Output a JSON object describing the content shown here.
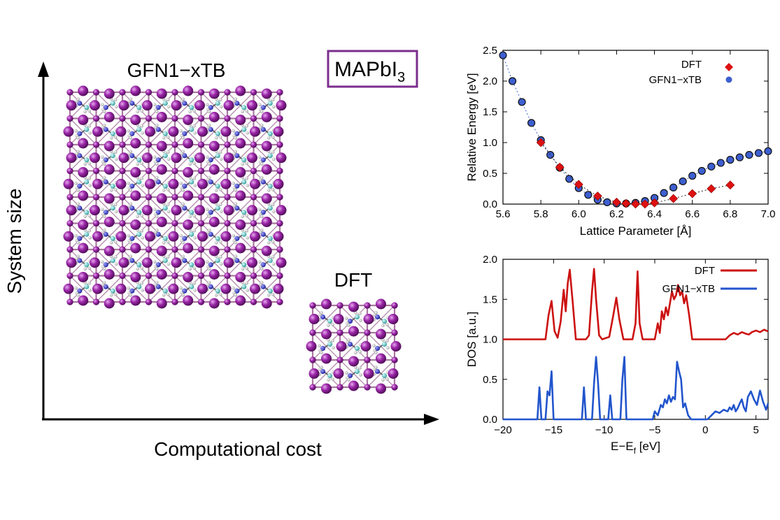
{
  "diagram": {
    "y_axis_label": "System size",
    "x_axis_label": "Computational cost",
    "large_cell_label": "GFN1−xTB",
    "small_cell_label": "DFT",
    "material_label": "MAPbI",
    "material_subscript": "3",
    "colors": {
      "iodine": "#8a1a94",
      "carbon": "#55c8c8",
      "nitrogen": "#2a2ad0",
      "hydrogen": "#f2f2f2",
      "frame": "#7b2d8e"
    }
  },
  "chart_data": [
    {
      "type": "scatter",
      "xlabel": "Lattice Parameter [Å]",
      "ylabel": "Relative Energy [eV]",
      "xlim": [
        5.6,
        7.0
      ],
      "ylim": [
        0.0,
        2.5
      ],
      "xticks": [
        "5.6",
        "5.8",
        "6.0",
        "6.2",
        "6.4",
        "6.6",
        "6.8",
        "7.0"
      ],
      "yticks": [
        "0.0",
        "0.5",
        "1.0",
        "1.5",
        "2.0",
        "2.5"
      ],
      "legend_position": "top-right",
      "series": [
        {
          "name": "DFT",
          "marker": "diamond",
          "color": "#dd1111",
          "x": [
            5.8,
            5.9,
            6.0,
            6.1,
            6.2,
            6.25,
            6.3,
            6.35,
            6.4,
            6.5,
            6.6,
            6.7,
            6.8
          ],
          "y": [
            1.0,
            0.6,
            0.32,
            0.13,
            0.03,
            0.01,
            0.0,
            0.0,
            0.02,
            0.09,
            0.17,
            0.25,
            0.31
          ]
        },
        {
          "name": "GFN1−xTB",
          "marker": "circle",
          "color": "#3d5fd0",
          "x": [
            5.6,
            5.65,
            5.7,
            5.75,
            5.8,
            5.85,
            5.9,
            5.95,
            6.0,
            6.05,
            6.1,
            6.15,
            6.2,
            6.25,
            6.3,
            6.35,
            6.4,
            6.45,
            6.5,
            6.55,
            6.6,
            6.65,
            6.7,
            6.75,
            6.8,
            6.85,
            6.9,
            6.95,
            7.0
          ],
          "y": [
            2.42,
            2.0,
            1.66,
            1.32,
            1.04,
            0.8,
            0.59,
            0.41,
            0.26,
            0.15,
            0.07,
            0.03,
            0.01,
            0.01,
            0.02,
            0.05,
            0.1,
            0.18,
            0.27,
            0.37,
            0.46,
            0.54,
            0.61,
            0.67,
            0.72,
            0.76,
            0.8,
            0.83,
            0.86
          ]
        }
      ]
    },
    {
      "type": "line",
      "xlabel": "E−E",
      "xlabel_sub": "f",
      "xlabel_unit": " [eV]",
      "ylabel": "DOS [a.u.]",
      "xlim": [
        -20,
        6.2
      ],
      "ylim": [
        0.0,
        2.0
      ],
      "xticks_values": [
        -20,
        -15,
        -10,
        -5,
        0,
        5
      ],
      "xticks": [
        "−20",
        "−15",
        "−10",
        "−5",
        "0",
        "5"
      ],
      "yticks": [
        "0.0",
        "0.5",
        "1.0",
        "1.5",
        "2.0"
      ],
      "legend_position": "top-right",
      "series": [
        {
          "name": "DFT",
          "color": "#cc1111",
          "x": [
            -20,
            -15.8,
            -15.5,
            -15.2,
            -14.9,
            -14.6,
            -14.3,
            -14.0,
            -13.8,
            -13.6,
            -13.4,
            -13.1,
            -12.8,
            -11.8,
            -11.5,
            -11.2,
            -11.0,
            -10.8,
            -10.5,
            -10.2,
            -9.5,
            -9.1,
            -8.8,
            -8.5,
            -8.1,
            -7.2,
            -6.9,
            -6.7,
            -6.5,
            -6.2,
            -5.0,
            -4.7,
            -4.5,
            -4.3,
            -4.1,
            -3.9,
            -3.7,
            -3.5,
            -3.3,
            -3.1,
            -2.9,
            -2.7,
            -2.5,
            -2.3,
            -2.1,
            -1.9,
            -1.6,
            -1.3,
            -1.0,
            0.0,
            2.0,
            2.4,
            2.8,
            3.2,
            3.6,
            4.0,
            4.3,
            4.6,
            5.0,
            5.4,
            5.8,
            6.2
          ],
          "y": [
            1.0,
            1.0,
            1.3,
            1.48,
            1.1,
            1.02,
            1.22,
            1.62,
            1.35,
            1.7,
            1.87,
            1.45,
            1.0,
            1.0,
            1.05,
            1.6,
            1.88,
            1.5,
            1.05,
            1.0,
            1.03,
            1.3,
            1.52,
            1.25,
            1.0,
            1.0,
            1.2,
            1.85,
            1.2,
            1.0,
            1.0,
            1.2,
            1.08,
            1.35,
            1.25,
            1.4,
            1.3,
            1.45,
            1.6,
            1.5,
            1.55,
            1.68,
            1.55,
            1.6,
            1.45,
            1.55,
            1.3,
            1.0,
            1.0,
            1.0,
            1.0,
            1.05,
            1.08,
            1.06,
            1.09,
            1.07,
            1.06,
            1.09,
            1.11,
            1.09,
            1.12,
            1.1
          ]
        },
        {
          "name": "GFN1−xTB",
          "color": "#2255cc",
          "x": [
            -20,
            -16.6,
            -16.4,
            -16.2,
            -15.8,
            -15.6,
            -15.4,
            -15.2,
            -15.0,
            -14.8,
            -12.2,
            -12.0,
            -11.8,
            -11.6,
            -11.2,
            -11.0,
            -10.8,
            -10.6,
            -10.4,
            -9.6,
            -9.4,
            -9.2,
            -8.4,
            -8.2,
            -8.0,
            -7.8,
            -5.2,
            -5.0,
            -4.7,
            -4.4,
            -4.2,
            -4.0,
            -3.8,
            -3.6,
            -3.4,
            -3.2,
            -3.0,
            -2.8,
            -2.6,
            -2.4,
            -2.2,
            -2.0,
            -1.7,
            -1.4,
            -1.2,
            -0.5,
            0.2,
            0.6,
            1.0,
            1.4,
            1.8,
            2.2,
            2.4,
            2.6,
            2.8,
            3.0,
            3.2,
            3.4,
            3.6,
            3.8,
            4.0,
            4.2,
            4.5,
            4.8,
            5.1,
            5.4,
            5.7,
            6.0,
            6.2
          ],
          "y": [
            0.0,
            0.0,
            0.4,
            0.0,
            0.0,
            0.35,
            0.3,
            0.6,
            0.0,
            0.0,
            0.0,
            0.4,
            0.0,
            0.0,
            0.0,
            0.45,
            0.78,
            0.45,
            0.0,
            0.0,
            0.3,
            0.0,
            0.0,
            0.5,
            0.78,
            0.0,
            0.0,
            0.1,
            0.05,
            0.18,
            0.15,
            0.25,
            0.2,
            0.3,
            0.22,
            0.28,
            0.25,
            0.72,
            0.6,
            0.5,
            0.15,
            0.2,
            0.05,
            0.0,
            0.0,
            0.0,
            0.0,
            0.05,
            0.1,
            0.08,
            0.12,
            0.1,
            0.15,
            0.12,
            0.18,
            0.1,
            0.14,
            0.2,
            0.25,
            0.15,
            0.1,
            0.28,
            0.35,
            0.25,
            0.18,
            0.36,
            0.22,
            0.12,
            0.2
          ]
        }
      ]
    }
  ]
}
